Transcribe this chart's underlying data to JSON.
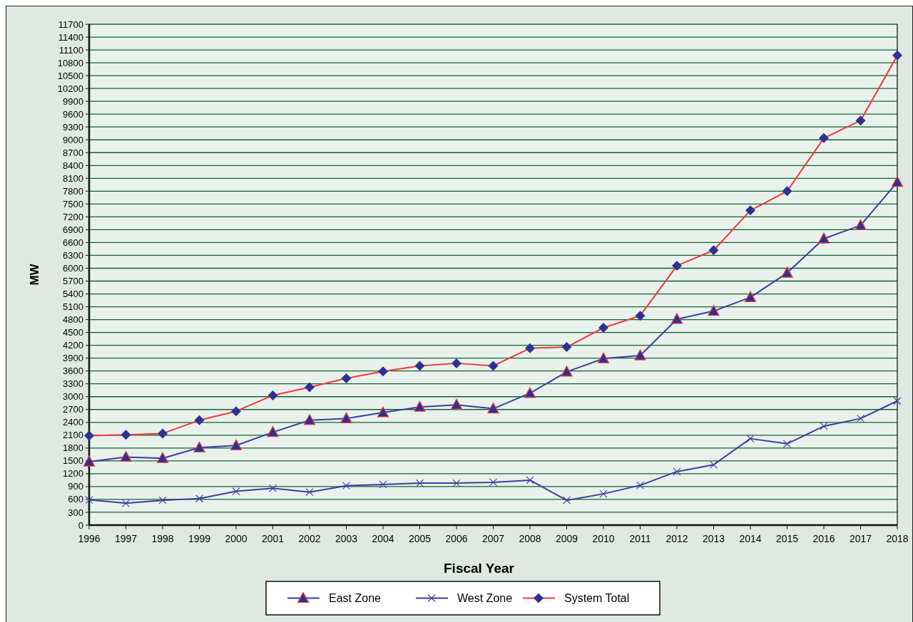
{
  "chart_data": {
    "type": "line",
    "xlabel": "Fiscal Year",
    "ylabel": "MW",
    "categories": [
      "1996",
      "1997",
      "1998",
      "1999",
      "2000",
      "2001",
      "2002",
      "2003",
      "2004",
      "2005",
      "2006",
      "2007",
      "2008",
      "2009",
      "2010",
      "2011",
      "2012",
      "2013",
      "2014",
      "2015",
      "2016",
      "2017",
      "2018"
    ],
    "series": [
      {
        "name": "East Zone",
        "color": "#3b3f9c",
        "marker": "triangle",
        "values": [
          1480,
          1590,
          1560,
          1810,
          1860,
          2170,
          2450,
          2490,
          2630,
          2760,
          2810,
          2720,
          3080,
          3580,
          3890,
          3960,
          4810,
          5000,
          5320,
          5890,
          6690,
          7000,
          8010
        ]
      },
      {
        "name": "West Zone",
        "color": "#3b3f9c",
        "marker": "cross",
        "values": [
          590,
          510,
          580,
          620,
          790,
          860,
          770,
          920,
          950,
          980,
          980,
          1000,
          1050,
          580,
          730,
          930,
          1250,
          1410,
          2020,
          1900,
          2310,
          2490,
          2900
        ]
      },
      {
        "name": "System Total",
        "color": "#f03a35",
        "marker": "diamond",
        "values": [
          2090,
          2110,
          2140,
          2450,
          2660,
          3030,
          3220,
          3430,
          3590,
          3720,
          3780,
          3720,
          4130,
          4160,
          4610,
          4890,
          6060,
          6420,
          7350,
          7800,
          9040,
          9450,
          10970
        ]
      }
    ],
    "ylim": [
      0,
      11700
    ],
    "yticks": [
      0,
      300,
      600,
      900,
      1200,
      1500,
      1800,
      2100,
      2400,
      2700,
      3000,
      3300,
      3600,
      3900,
      4200,
      4500,
      4800,
      5100,
      5400,
      5700,
      6000,
      6300,
      6600,
      6900,
      7200,
      7500,
      7800,
      8100,
      8400,
      8700,
      9000,
      9300,
      9600,
      9900,
      10200,
      10500,
      10800,
      11100,
      11400,
      11700
    ],
    "grid": "y",
    "legend": "bottom"
  }
}
